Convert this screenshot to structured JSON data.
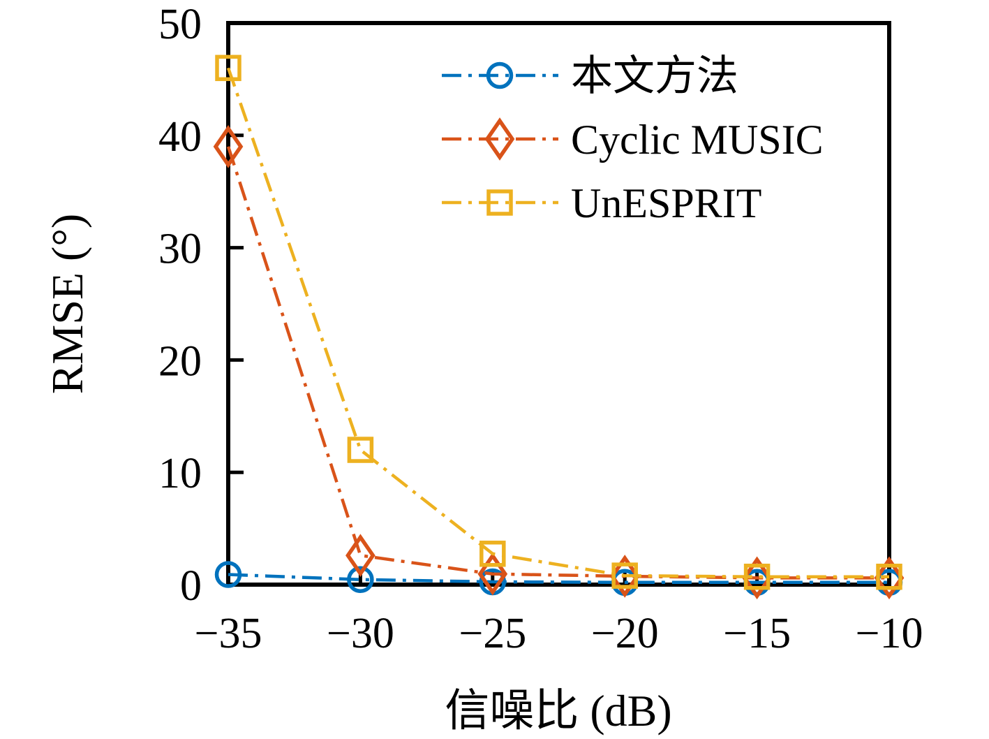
{
  "figure": {
    "background_color": "#ffffff",
    "axis_color": "#000000"
  },
  "chart_data": {
    "type": "line",
    "title": "",
    "xlabel": "信噪比 (dB)",
    "ylabel": "RMSE (°)",
    "x": [
      -35,
      -30,
      -25,
      -20,
      -15,
      -10
    ],
    "xlim": [
      -35,
      -10
    ],
    "ylim": [
      0,
      50
    ],
    "x_tick_labels": [
      "−35",
      "−30",
      "−25",
      "−20",
      "−15",
      "−10"
    ],
    "y_tick_values": [
      0,
      10,
      20,
      30,
      40,
      50
    ],
    "y_tick_labels": [
      "0",
      "10",
      "20",
      "30",
      "40",
      "50"
    ],
    "grid": false,
    "legend_position": "inside-upper-right",
    "legend_frame": false,
    "line_style": "dash-dot",
    "series": [
      {
        "id": "proposed-method",
        "name": "本文方法",
        "color": "#0072BD",
        "marker": "circle",
        "values": [
          0.9,
          0.45,
          0.25,
          0.2,
          0.2,
          0.2
        ]
      },
      {
        "id": "cyclic-music",
        "name": "Cyclic MUSIC",
        "color": "#D95319",
        "marker": "diamond",
        "values": [
          39,
          2.6,
          0.95,
          0.75,
          0.6,
          0.6
        ]
      },
      {
        "id": "unesprit",
        "name": "UnESPRIT",
        "color": "#EDB120",
        "marker": "square",
        "values": [
          46,
          12,
          2.75,
          0.8,
          0.7,
          0.7
        ]
      }
    ]
  }
}
